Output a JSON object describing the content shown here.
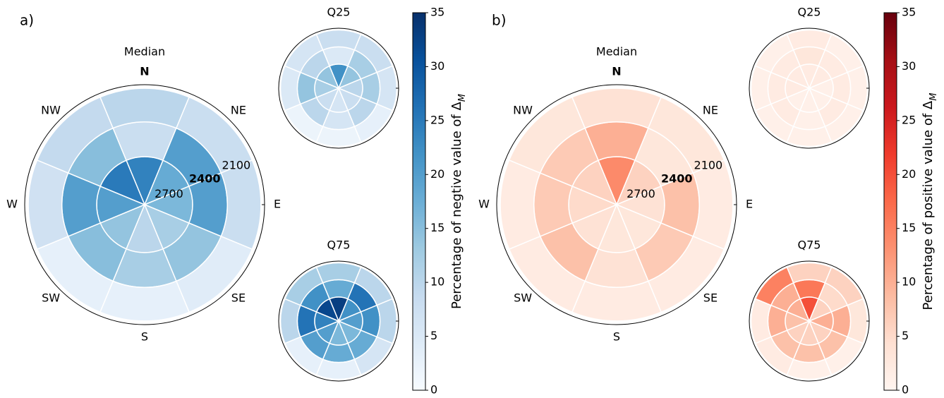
{
  "chart_data": [
    {
      "type": "polar-heatmap",
      "panel_label": "a)",
      "colormap": "Blues",
      "clim": [
        0,
        35
      ],
      "cticks": [
        0,
        5,
        10,
        15,
        20,
        25,
        30,
        35
      ],
      "colorbar_label": "Percentage of negtive value of Δ",
      "colorbar_label_subscript": "M",
      "directions": [
        "N",
        "NE",
        "E",
        "SE",
        "S",
        "SW",
        "W",
        "NW"
      ],
      "ring_labels": [
        "2700",
        "2400",
        "2100"
      ],
      "plots": [
        {
          "title": "Median",
          "values": [
            [
              24,
              18,
              16,
              12,
              10,
              14,
              20,
              25
            ],
            [
              8,
              20,
              20,
              14,
              12,
              15,
              20,
              15
            ],
            [
              10,
              8,
              8,
              4,
              3,
              3,
              7,
              9
            ]
          ]
        },
        {
          "title": "Q25",
          "values": [
            [
              22,
              14,
              10,
              8,
              6,
              8,
              12,
              14
            ],
            [
              5,
              12,
              12,
              10,
              6,
              10,
              14,
              10
            ],
            [
              8,
              8,
              6,
              3,
              2,
              2,
              5,
              6
            ]
          ]
        },
        {
          "title": "Q75",
          "values": [
            [
              33,
              22,
              20,
              16,
              16,
              20,
              24,
              32
            ],
            [
              18,
              26,
              22,
              18,
              18,
              20,
              26,
              22
            ],
            [
              12,
              10,
              10,
              6,
              3,
              3,
              10,
              12
            ]
          ]
        }
      ]
    },
    {
      "type": "polar-heatmap",
      "panel_label": "b)",
      "colormap": "Reds",
      "clim": [
        0,
        35
      ],
      "cticks": [
        0,
        5,
        10,
        15,
        20,
        25,
        30,
        35
      ],
      "colorbar_label": "Percentage of positive value of Δ",
      "colorbar_label_subscript": "M",
      "directions": [
        "N",
        "NE",
        "E",
        "SE",
        "S",
        "SW",
        "W",
        "NW"
      ],
      "ring_labels": [
        "2700",
        "2400",
        "2100"
      ],
      "plots": [
        {
          "title": "Median",
          "values": [
            [
              14,
              6,
              4,
              3,
              3,
              4,
              5,
              6
            ],
            [
              10,
              3,
              8,
              7,
              4,
              8,
              7,
              7
            ],
            [
              4,
              3,
              2,
              2,
              2,
              2,
              2,
              3
            ]
          ]
        },
        {
          "title": "Q25",
          "values": [
            [
              2,
              2,
              1,
              1,
              1,
              1,
              2,
              2
            ],
            [
              3,
              2,
              2,
              2,
              1,
              2,
              2,
              2
            ],
            [
              2,
              1,
              1,
              1,
              1,
              1,
              1,
              1
            ]
          ]
        },
        {
          "title": "Q75",
          "values": [
            [
              20,
              6,
              10,
              6,
              6,
              6,
              8,
              10
            ],
            [
              16,
              5,
              10,
              8,
              8,
              8,
              10,
              10
            ],
            [
              6,
              6,
              3,
              1,
              1,
              2,
              2,
              15
            ]
          ]
        }
      ]
    }
  ]
}
